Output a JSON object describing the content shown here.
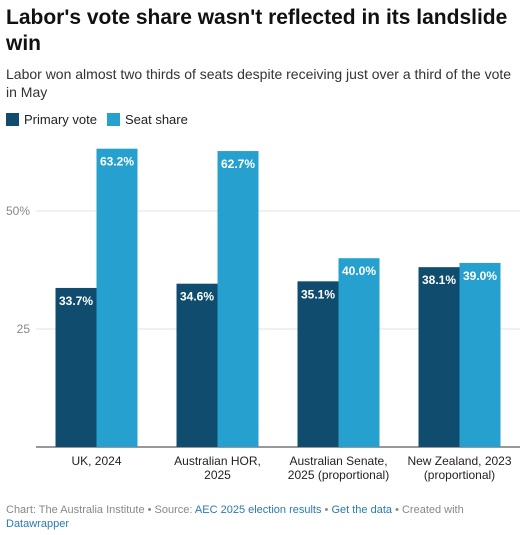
{
  "title": "Labor's vote share wasn't reflected in its landslide win",
  "subtitle": "Labor won almost two thirds of seats despite receiving just over a third of the vote in May",
  "legend": [
    {
      "label": "Primary vote",
      "color": "#0f4c6e"
    },
    {
      "label": "Seat share",
      "color": "#26a1cf"
    }
  ],
  "footer": {
    "chart_prefix": "Chart: The Australia Institute • Source: ",
    "source_link": "AEC 2025 election results",
    "sep1": " • ",
    "data_link": "Get the data",
    "sep2": " • Created with ",
    "dw_link": "Datawrapper"
  },
  "chart_data": {
    "type": "bar",
    "title": "Labor's vote share wasn't reflected in its landslide win",
    "subtitle": "Labor won almost two thirds of seats despite receiving just over a third of the vote in May",
    "categories": [
      [
        "UK, 2024"
      ],
      [
        "Australian HOR,",
        "2025"
      ],
      [
        "Australian Senate,",
        "2025 (proportional)"
      ],
      [
        "New Zealand, 2023",
        "(proportional)"
      ]
    ],
    "series": [
      {
        "name": "Primary vote",
        "color": "#0f4c6e",
        "values": [
          33.7,
          34.6,
          35.1,
          38.1
        ],
        "labels": [
          "33.7%",
          "34.6%",
          "35.1%",
          "38.1%"
        ]
      },
      {
        "name": "Seat share",
        "color": "#26a1cf",
        "values": [
          63.2,
          62.7,
          40.0,
          39.0
        ],
        "labels": [
          "63.2%",
          "62.7%",
          "40.0%",
          "39.0%"
        ]
      }
    ],
    "yticks": [
      {
        "value": 25,
        "label": "25"
      },
      {
        "value": 50,
        "label": "50%"
      }
    ],
    "ylim": [
      0,
      75
    ],
    "grid": true,
    "legend_position": "top-left"
  }
}
